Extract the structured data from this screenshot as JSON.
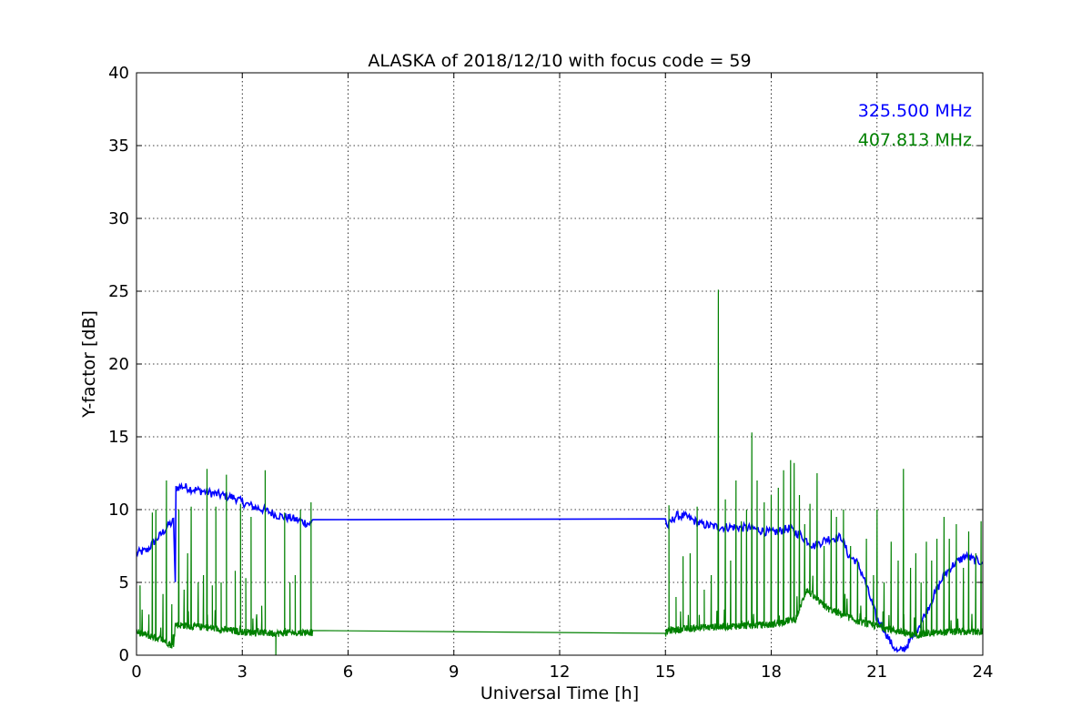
{
  "chart_data": {
    "type": "line",
    "title": "ALASKA of 2018/12/10 with focus code = 59",
    "xlabel": "Universal Time [h]",
    "ylabel": "Y-factor [dB]",
    "xlim": [
      0,
      24
    ],
    "ylim": [
      0,
      40
    ],
    "xticks": [
      0,
      3,
      6,
      9,
      12,
      15,
      18,
      21,
      24
    ],
    "yticks": [
      0,
      5,
      10,
      15,
      20,
      25,
      30,
      35,
      40
    ],
    "grid": true,
    "legend_position": "top-right",
    "series": [
      {
        "name": "325.500 MHz",
        "color": "#0000ff",
        "points": [
          [
            0.0,
            7.0
          ],
          [
            0.3,
            7.2
          ],
          [
            0.5,
            7.8
          ],
          [
            0.7,
            8.3
          ],
          [
            0.9,
            8.9
          ],
          [
            1.05,
            9.2
          ],
          [
            1.1,
            5.0
          ],
          [
            1.12,
            11.5
          ],
          [
            1.3,
            11.6
          ],
          [
            1.6,
            11.4
          ],
          [
            2.0,
            11.2
          ],
          [
            2.4,
            11.0
          ],
          [
            2.8,
            10.8
          ],
          [
            3.0,
            10.5
          ],
          [
            3.3,
            10.2
          ],
          [
            3.6,
            10.0
          ],
          [
            4.0,
            9.6
          ],
          [
            4.4,
            9.4
          ],
          [
            4.8,
            9.1
          ],
          [
            4.95,
            9.0
          ],
          [
            5.0,
            9.4
          ],
          [
            15.0,
            9.4
          ],
          [
            15.05,
            8.8
          ],
          [
            15.3,
            9.6
          ],
          [
            15.6,
            9.5
          ],
          [
            16.0,
            9.0
          ],
          [
            16.5,
            8.8
          ],
          [
            17.0,
            8.8
          ],
          [
            17.5,
            8.7
          ],
          [
            18.0,
            8.4
          ],
          [
            18.5,
            8.7
          ],
          [
            18.8,
            8.3
          ],
          [
            19.2,
            7.5
          ],
          [
            19.6,
            8.0
          ],
          [
            20.0,
            8.1
          ],
          [
            20.2,
            6.8
          ],
          [
            20.4,
            6.5
          ],
          [
            20.6,
            5.5
          ],
          [
            20.8,
            4.0
          ],
          [
            21.0,
            2.5
          ],
          [
            21.2,
            1.8
          ],
          [
            21.4,
            0.8
          ],
          [
            21.6,
            0.2
          ],
          [
            21.8,
            0.5
          ],
          [
            22.0,
            1.2
          ],
          [
            22.3,
            2.5
          ],
          [
            22.6,
            4.0
          ],
          [
            22.9,
            5.5
          ],
          [
            23.2,
            6.3
          ],
          [
            23.5,
            6.8
          ],
          [
            23.8,
            6.5
          ],
          [
            24.0,
            6.4
          ]
        ]
      },
      {
        "name": "407.813 MHz",
        "color": "#008000",
        "base": [
          [
            0,
            1.6
          ],
          [
            0.8,
            1.0
          ],
          [
            1.05,
            0.6
          ],
          [
            1.1,
            2.1
          ],
          [
            2.0,
            1.9
          ],
          [
            3.0,
            1.6
          ],
          [
            4.0,
            1.5
          ],
          [
            4.95,
            1.6
          ],
          [
            5.0,
            1.5
          ],
          [
            15.0,
            1.5
          ],
          [
            15.1,
            1.7
          ],
          [
            16.0,
            1.9
          ],
          [
            17.0,
            2.0
          ],
          [
            18.0,
            2.1
          ],
          [
            18.7,
            2.5
          ],
          [
            19.0,
            4.5
          ],
          [
            19.3,
            3.8
          ],
          [
            19.6,
            3.2
          ],
          [
            20.0,
            2.8
          ],
          [
            20.5,
            2.3
          ],
          [
            21.0,
            2.0
          ],
          [
            22.0,
            1.4
          ],
          [
            23.0,
            1.6
          ],
          [
            24.0,
            1.6
          ]
        ],
        "spikes": [
          [
            0.1,
            4.8
          ],
          [
            0.35,
            2.8
          ],
          [
            0.45,
            9.8
          ],
          [
            0.55,
            10.0
          ],
          [
            0.75,
            4.2
          ],
          [
            0.85,
            12.0
          ],
          [
            1.0,
            3.5
          ],
          [
            1.2,
            10.0
          ],
          [
            1.35,
            4.5
          ],
          [
            1.45,
            7.0
          ],
          [
            1.55,
            10.2
          ],
          [
            1.75,
            5.0
          ],
          [
            1.9,
            5.5
          ],
          [
            2.0,
            12.8
          ],
          [
            2.15,
            4.8
          ],
          [
            2.25,
            10.2
          ],
          [
            2.4,
            5.0
          ],
          [
            2.55,
            12.4
          ],
          [
            2.8,
            5.8
          ],
          [
            2.95,
            10.4
          ],
          [
            3.1,
            5.3
          ],
          [
            3.25,
            9.5
          ],
          [
            3.55,
            3.4
          ],
          [
            3.65,
            12.7
          ],
          [
            3.95,
            -0.5
          ],
          [
            4.2,
            9.8
          ],
          [
            4.35,
            5.0
          ],
          [
            4.5,
            5.5
          ],
          [
            4.65,
            10.0
          ],
          [
            4.95,
            10.5
          ],
          [
            15.1,
            10.3
          ],
          [
            15.3,
            4.0
          ],
          [
            15.5,
            6.8
          ],
          [
            15.7,
            7.0
          ],
          [
            15.9,
            10.2
          ],
          [
            16.1,
            4.5
          ],
          [
            16.3,
            5.5
          ],
          [
            16.5,
            25.1
          ],
          [
            16.7,
            10.7
          ],
          [
            16.85,
            6.5
          ],
          [
            17.0,
            12.0
          ],
          [
            17.15,
            9.2
          ],
          [
            17.3,
            10.0
          ],
          [
            17.45,
            15.3
          ],
          [
            17.6,
            12.0
          ],
          [
            17.8,
            10.5
          ],
          [
            18.0,
            11.0
          ],
          [
            18.2,
            11.5
          ],
          [
            18.35,
            12.7
          ],
          [
            18.55,
            13.4
          ],
          [
            18.65,
            13.2
          ],
          [
            18.8,
            11.0
          ],
          [
            18.95,
            9.0
          ],
          [
            19.1,
            10.4
          ],
          [
            19.3,
            12.5
          ],
          [
            19.5,
            7.5
          ],
          [
            19.7,
            10.0
          ],
          [
            19.85,
            9.5
          ],
          [
            20.05,
            10.0
          ],
          [
            20.25,
            7.5
          ],
          [
            20.45,
            6.5
          ],
          [
            20.7,
            8.0
          ],
          [
            20.9,
            5.5
          ],
          [
            21.0,
            10.0
          ],
          [
            21.2,
            5.0
          ],
          [
            21.4,
            7.8
          ],
          [
            21.6,
            6.5
          ],
          [
            21.75,
            12.8
          ],
          [
            21.95,
            6.0
          ],
          [
            22.1,
            7.0
          ],
          [
            22.25,
            5.0
          ],
          [
            22.4,
            7.8
          ],
          [
            22.55,
            6.5
          ],
          [
            22.7,
            8.0
          ],
          [
            22.9,
            9.5
          ],
          [
            23.05,
            8.0
          ],
          [
            23.25,
            9.0
          ],
          [
            23.45,
            6.0
          ],
          [
            23.6,
            8.5
          ],
          [
            23.8,
            7.0
          ],
          [
            23.95,
            9.2
          ]
        ]
      }
    ]
  }
}
